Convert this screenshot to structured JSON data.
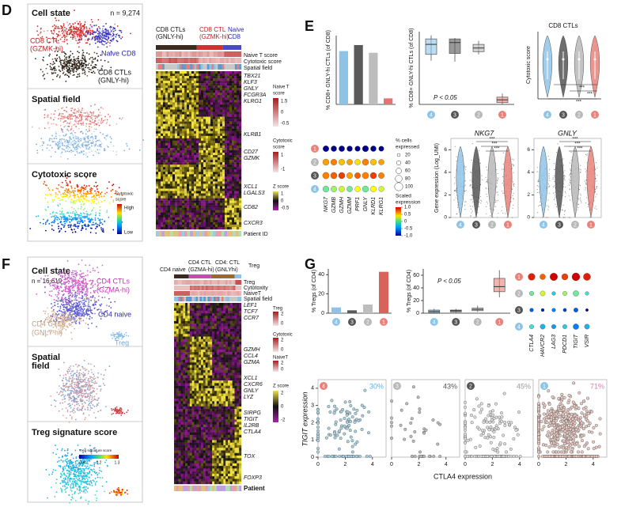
{
  "D": {
    "label": "D",
    "cell_state": {
      "title": "Cell state",
      "n": "n = 9,274",
      "clusters": [
        [
          "CD8 CTL",
          "(GZMK-hi)"
        ],
        [
          "Naive CD8"
        ],
        [
          "CD8 CTLs",
          "(GNLY-hi)"
        ]
      ]
    },
    "spatial": {
      "title": "Spatial field"
    },
    "cytotoxic": {
      "title": "Cytotoxic score",
      "legend_title": [
        "Cytotoxic",
        "score"
      ],
      "high": "High",
      "low": "Low"
    },
    "heatmap": {
      "groups": [
        [
          "CD8 CTLs",
          "(GNLY-hi)"
        ],
        [
          "CD8 CTL",
          "(GZMK-hi)"
        ],
        [
          "Naive",
          "CD8"
        ]
      ],
      "annotations": [
        "Naive T score",
        "Cytotoxic score",
        "Spatial field"
      ],
      "genes": [
        "TBX21",
        "KLF3",
        "GNLY",
        "FCGR3A",
        "KLRG1",
        "KLRB1",
        "CD27",
        "GZMK",
        "XCL1",
        "LGALS3",
        "CD82",
        "CXCR3"
      ],
      "footer": "Patient ID",
      "legends": [
        {
          "title": [
            "Naive T",
            "score"
          ],
          "ticks": [
            "1.5",
            "0",
            "-0.5"
          ]
        },
        {
          "title": [
            "Cytotoxic",
            "score"
          ],
          "ticks": [
            "1",
            "-1"
          ]
        },
        {
          "title": [
            "Z score"
          ],
          "ticks": [
            "1",
            "0",
            "-0.5"
          ]
        }
      ]
    }
  },
  "E": {
    "label": "E",
    "clusters": [
      "4",
      "3",
      "2",
      "1"
    ],
    "cluster_colors": [
      "#8ec4e8",
      "#555555",
      "#b8b8b8",
      "#e8827a"
    ],
    "bar": {
      "ylabel": "% CD8+ GNLY-hi CTLs (of CD8)",
      "values": [
        62,
        69,
        60,
        7
      ],
      "colors": [
        "#8fc3e6",
        "#5a5a5a",
        "#bdbdbd",
        "#e57373"
      ],
      "ylim": [
        0,
        80
      ]
    },
    "box": {
      "ylabel": "% CD8+ GNLY-hi CTLs (of CD8)",
      "p": "P < 0.05",
      "ylim": [
        0,
        80
      ],
      "groups": [
        {
          "min": 48,
          "q1": 55,
          "median": 66,
          "q3": 72,
          "max": 76
        },
        {
          "min": 47,
          "q1": 56,
          "median": 68,
          "q3": 72,
          "max": 73
        },
        {
          "min": 55,
          "q1": 58,
          "median": 62,
          "q3": 66,
          "max": 70
        },
        {
          "min": 0,
          "q1": 2,
          "median": 5,
          "q3": 8,
          "max": 12
        }
      ]
    },
    "violin": {
      "title": "CD8 CTLs",
      "ylabel": "Cytotoxic score",
      "sig": [
        "***",
        "***",
        "***"
      ]
    },
    "dotplot": {
      "rows": [
        "1",
        "2",
        "3",
        "4"
      ],
      "genes": [
        "NKG7",
        "GZMB",
        "GZMH",
        "GZMM",
        "PRF1",
        "GNLY",
        "KLRD1",
        "KLRG1"
      ],
      "pct": [
        [
          65,
          60,
          62,
          58,
          55,
          68,
          60,
          52
        ],
        [
          70,
          68,
          66,
          62,
          60,
          72,
          66,
          60
        ],
        [
          75,
          72,
          70,
          66,
          64,
          74,
          70,
          64
        ],
        [
          68,
          64,
          62,
          60,
          58,
          70,
          64,
          56
        ]
      ],
      "scaled": [
        [
          -1,
          -1,
          -1,
          -1,
          -1,
          -1,
          -1,
          -1
        ],
        [
          0.5,
          0.6,
          0.4,
          0.5,
          0.3,
          0.6,
          0.4,
          0.5
        ],
        [
          0.6,
          0.7,
          0.8,
          0.5,
          0.7,
          0.6,
          0.8,
          0.6
        ],
        [
          -0.1,
          0,
          0.1,
          -0.1,
          0.2,
          -0.1,
          0.2,
          0.1
        ]
      ],
      "size_legend": {
        "title": [
          "% cells",
          "expressed"
        ],
        "ticks": [
          20,
          40,
          60,
          80,
          100
        ]
      },
      "color_legend": {
        "title": [
          "Scaled",
          "expression"
        ],
        "ticks": [
          {
            "value": 1,
            "label": "1.0"
          },
          0.5,
          0,
          -0.5,
          {
            "value": -1,
            "label": "-1.0"
          }
        ]
      }
    },
    "violins": {
      "ylabel": "Gene expression (Log_UMI)",
      "ylim": [
        0,
        7
      ],
      "yticks": [
        0,
        2,
        4,
        6
      ],
      "panels": [
        {
          "title": "NKG7",
          "sig": [
            "***",
            "***",
            "***"
          ]
        },
        {
          "title": "GNLY",
          "sig": [
            "***",
            "***",
            "***"
          ]
        }
      ]
    }
  },
  "F": {
    "label": "F",
    "cell_state": {
      "title": "Cell state",
      "n": "n = 16,619",
      "clusters": [
        [
          "CD4 CTLs",
          "(GZMA-hi)"
        ],
        [
          "CD4 naive"
        ],
        [
          "CD4 CTLs",
          "(GNLY-hi)"
        ],
        [
          "Treg"
        ]
      ]
    },
    "spatial": {
      "title": [
        "Spatial",
        "field"
      ]
    },
    "treg": {
      "title": [
        "Treg signature score"
      ],
      "legend_title": "Treg signature score",
      "ticks": [
        "-0.8",
        "0.2",
        "1.3"
      ]
    },
    "heatmap": {
      "groups": [
        [
          "CD4 naive"
        ],
        [
          "CD4 CTL",
          "(GZMA-hi)"
        ],
        [
          "CD4: CTL",
          "(GNLYhi)"
        ],
        [
          "Treg"
        ]
      ],
      "annotations": [
        "Treg",
        "Cytotoxity",
        "NaiveT",
        "Spatial field"
      ],
      "genes": [
        "LEF1",
        "TCF7",
        "CCR7",
        "GZMH",
        "CCL4",
        "GZMA",
        "XCL1",
        "CXCR6",
        "GNLY",
        "LYZ",
        "SIRPG",
        "TIGIT",
        "IL2RB",
        "CTLA4",
        "TOX",
        "FOXP3"
      ],
      "footer": "Patient",
      "legends": [
        {
          "title": [
            "Treg"
          ],
          "ticks": [
            "2",
            "0"
          ]
        },
        {
          "title": [
            "Cytotoxic"
          ],
          "ticks": [
            "2",
            "0"
          ]
        },
        {
          "title": [
            "NaiveT"
          ],
          "ticks": [
            "2",
            "0"
          ]
        },
        {
          "title": [
            "Z score"
          ],
          "ticks": [
            "2",
            "0",
            "-2"
          ]
        }
      ]
    }
  },
  "G": {
    "label": "G",
    "clusters": [
      "4",
      "3",
      "2",
      "1"
    ],
    "cluster_colors": [
      "#8ec4e8",
      "#555555",
      "#b8b8b8",
      "#e8827a"
    ],
    "bar": {
      "ylabel": "% Tregs (of CD4)",
      "values": [
        6,
        3,
        9,
        43
      ],
      "colors": [
        "#8fc3e6",
        "#5a5a5a",
        "#bdbdbd",
        "#d9625a"
      ],
      "ylim": [
        0,
        46
      ],
      "yticks": [
        0,
        20,
        40
      ]
    },
    "box": {
      "ylabel": "% Tregs (of CD4)",
      "p": "P < 0.05",
      "ylim": [
        0,
        70
      ],
      "yticks": [
        0,
        20,
        40,
        60
      ],
      "groups": [
        {
          "min": 0,
          "q1": 1,
          "median": 3,
          "q3": 5,
          "max": 7
        },
        {
          "min": 1,
          "q1": 2,
          "median": 4,
          "q3": 5,
          "max": 7
        },
        {
          "min": 2,
          "q1": 4,
          "median": 6,
          "q3": 8,
          "max": 12
        },
        {
          "min": 25,
          "q1": 34,
          "median": 42,
          "q3": 55,
          "max": 68
        }
      ]
    },
    "dotplot": {
      "rows": [
        "1",
        "2",
        "3",
        "4"
      ],
      "genes": [
        "CTLA4",
        "HAVCR2",
        "LAG3",
        "PDCD1",
        "TIGIT",
        "VSIR"
      ],
      "pct": [
        [
          80,
          60,
          90,
          70,
          95,
          85
        ],
        [
          40,
          50,
          30,
          40,
          60,
          30
        ],
        [
          30,
          20,
          30,
          25,
          40,
          15
        ],
        [
          40,
          50,
          40,
          40,
          60,
          50
        ]
      ],
      "scaled": [
        [
          0.9,
          0.7,
          1,
          0.8,
          1,
          0.9
        ],
        [
          -0.1,
          0.1,
          -0.3,
          0,
          -0.1,
          -0.2
        ],
        [
          -0.7,
          -0.9,
          -0.6,
          -0.8,
          -0.7,
          -1
        ],
        [
          -0.2,
          -0.4,
          -0.5,
          -0.3,
          -0.6,
          -0.4
        ]
      ]
    },
    "scatter": {
      "ylabel": "TIGIT expression",
      "xlabel": "CTLA4 expression",
      "xlim": [
        0,
        5
      ],
      "ylim": [
        0,
        4.5
      ],
      "xticks": [
        0,
        2,
        4
      ],
      "yticks": [
        0,
        1,
        2,
        3,
        4
      ],
      "panels": [
        {
          "cluster": "4",
          "percent": "30%",
          "color": "#5bb0e0"
        },
        {
          "cluster": "3",
          "percent": "43%",
          "color": "#555555"
        },
        {
          "cluster": "2",
          "percent": "45%",
          "color": "#9a9a9a"
        },
        {
          "cluster": "1",
          "percent": "71%",
          "color": "#e07ab0"
        }
      ]
    }
  }
}
